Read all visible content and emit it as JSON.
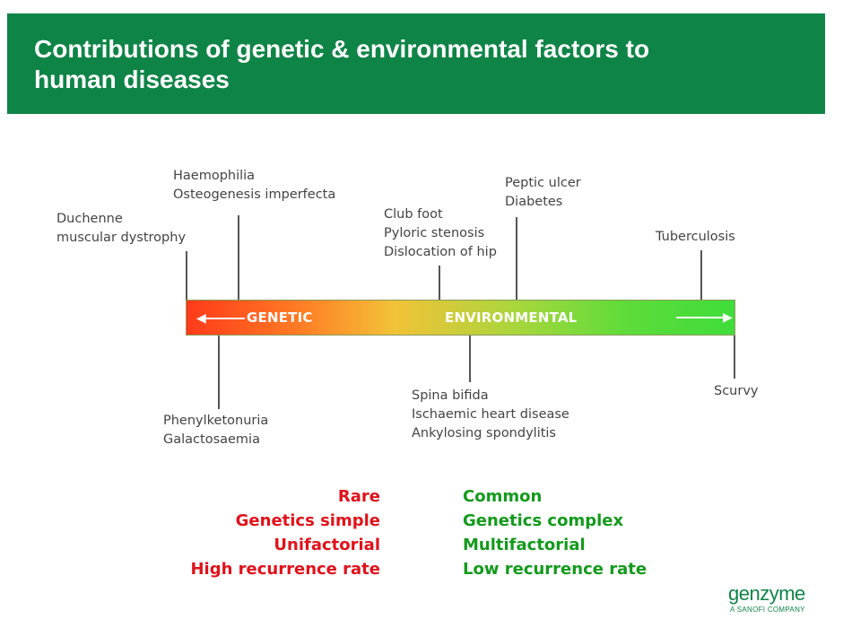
{
  "header": {
    "title_line1": "Contributions of genetic & environmental factors to",
    "title_line2": "human diseases",
    "background_color": "#0f8447"
  },
  "bar": {
    "left_label": "GENETIC",
    "right_label": "ENVIRONMENTAL",
    "gradient_start_color": "#ff3a1a",
    "gradient_end_color": "#3fdd3a"
  },
  "diseases_above": [
    {
      "line1": "Duchenne",
      "line2": "muscular dystrophy"
    },
    {
      "line1": "Haemophilia",
      "line2": "Osteogenesis imperfecta"
    },
    {
      "line1": "Club foot",
      "line2": "Pyloric stenosis",
      "line3": "Dislocation of hip"
    },
    {
      "line1": "Peptic ulcer",
      "line2": "Diabetes"
    },
    {
      "line1": "Tuberculosis"
    }
  ],
  "diseases_below": [
    {
      "line1": "Phenylketonuria",
      "line2": "Galactosaemia"
    },
    {
      "line1": "Spina bifida",
      "line2": "Ischaemic heart disease",
      "line3": "Ankylosing spondylitis"
    },
    {
      "line1": "Scurvy"
    }
  ],
  "genetic_traits": {
    "color": "#e0121b",
    "items": [
      "Rare",
      "Genetics simple",
      "Unifactorial",
      "High recurrence rate"
    ]
  },
  "environmental_traits": {
    "color": "#139a1c",
    "items": [
      "Common",
      "Genetics complex",
      "Multifactorial",
      "Low recurrence rate"
    ]
  },
  "logo": {
    "name": "genzyme",
    "tagline": "A SANOFI COMPANY"
  }
}
